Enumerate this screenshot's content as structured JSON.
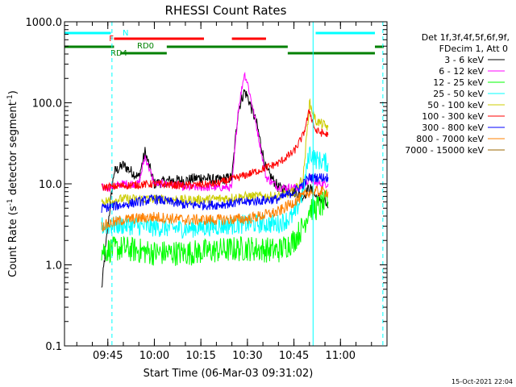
{
  "chart_data": {
    "type": "line",
    "title": "RHESSI Count Rates",
    "xlabel": "Start Time (06-Mar-03 09:31:02)",
    "ylabel": "Count Rate (s⁻¹ detector segment⁻¹)",
    "ylabel_parts": [
      "Count Rate (s",
      "-1",
      " detector segment",
      "-1",
      ")"
    ],
    "y_scale": "log",
    "ylim": [
      0.1,
      1000
    ],
    "xlim": [
      "09:31:02",
      "11:15:00"
    ],
    "x_ticks": [
      "09:45",
      "10:00",
      "10:15",
      "10:30",
      "10:45",
      "11:00"
    ],
    "y_ticks": [
      "0.1",
      "1.0",
      "10.0",
      "100.0",
      "1000.0"
    ],
    "legend_header": [
      "Det 1f,3f,4f,5f,6f,9f,",
      "FDecim 1, Att 0"
    ],
    "timestamp": "15-Oct-2021 22:04",
    "series": [
      {
        "name": "3 - 6 keV",
        "color": "#000000",
        "x": [
          "09:43",
          "09:45",
          "09:47",
          "09:50",
          "09:55",
          "09:57",
          "10:00",
          "10:05",
          "10:10",
          "10:15",
          "10:20",
          "10:25",
          "10:27",
          "10:29",
          "10:30",
          "10:33",
          "10:36",
          "10:40",
          "10:45",
          "10:48",
          "10:50",
          "10:52",
          "10:55",
          "10:56"
        ],
        "y": [
          0.5,
          3,
          14,
          17,
          12,
          25,
          10,
          11,
          11,
          12,
          11,
          12,
          80,
          140,
          120,
          55,
          15,
          9,
          8,
          7,
          9,
          7,
          6,
          5
        ]
      },
      {
        "name": "6 - 12 keV",
        "color": "#ff00ff",
        "x": [
          "09:43",
          "09:45",
          "09:50",
          "09:55",
          "09:57",
          "10:00",
          "10:05",
          "10:10",
          "10:15",
          "10:20",
          "10:25",
          "10:27",
          "10:29",
          "10:30",
          "10:33",
          "10:36",
          "10:40",
          "10:45",
          "10:48",
          "10:50",
          "10:52",
          "10:55",
          "10:56"
        ],
        "y": [
          9,
          9,
          10,
          10,
          22,
          10,
          10,
          9,
          9,
          9,
          9,
          80,
          230,
          180,
          50,
          12,
          9,
          9,
          9,
          12,
          10,
          10,
          10
        ]
      },
      {
        "name": "12 - 25 keV",
        "color": "#00ff00",
        "x": [
          "09:43",
          "09:50",
          "10:00",
          "10:10",
          "10:20",
          "10:30",
          "10:40",
          "10:45",
          "10:48",
          "10:50",
          "10:52",
          "10:56"
        ],
        "y": [
          1.5,
          1.6,
          1.4,
          1.4,
          1.5,
          1.6,
          1.5,
          2,
          3,
          5,
          5,
          6
        ]
      },
      {
        "name": "25 - 50 keV",
        "color": "#00ffff",
        "x": [
          "09:43",
          "09:50",
          "10:00",
          "10:10",
          "10:20",
          "10:30",
          "10:40",
          "10:45",
          "10:48",
          "10:50",
          "10:52",
          "10:56"
        ],
        "y": [
          3,
          3.1,
          2.9,
          2.8,
          3,
          3.2,
          3.2,
          4,
          8,
          25,
          20,
          18
        ]
      },
      {
        "name": "50 - 100 keV",
        "color": "#cccc00",
        "x": [
          "09:43",
          "09:50",
          "10:00",
          "10:10",
          "10:20",
          "10:30",
          "10:40",
          "10:45",
          "10:48",
          "10:50",
          "10:52",
          "10:56"
        ],
        "y": [
          6,
          6.5,
          6.5,
          6.3,
          6.5,
          7,
          7,
          8,
          12,
          100,
          60,
          50
        ]
      },
      {
        "name": "100 - 300 keV",
        "color": "#ff0000",
        "x": [
          "09:43",
          "09:50",
          "10:00",
          "10:10",
          "10:20",
          "10:30",
          "10:40",
          "10:45",
          "10:48",
          "10:50",
          "10:52",
          "10:56"
        ],
        "y": [
          9,
          9.5,
          10,
          9.5,
          10,
          13,
          18,
          25,
          40,
          80,
          45,
          40
        ]
      },
      {
        "name": "300 - 800 keV",
        "color": "#0000ff",
        "x": [
          "09:43",
          "09:50",
          "10:00",
          "10:10",
          "10:20",
          "10:30",
          "10:40",
          "10:45",
          "10:48",
          "10:50",
          "10:52",
          "10:56"
        ],
        "y": [
          5,
          5.5,
          6.5,
          5.5,
          5.5,
          6,
          6.5,
          8,
          10,
          12,
          12,
          12
        ]
      },
      {
        "name": "800 - 7000 keV",
        "color": "#ff8000",
        "x": [
          "09:43",
          "09:50",
          "10:00",
          "10:10",
          "10:20",
          "10:30",
          "10:40",
          "10:45",
          "10:48",
          "10:50",
          "10:52",
          "10:56"
        ],
        "y": [
          3,
          3.6,
          3.9,
          3.6,
          3.6,
          3.7,
          4.5,
          6,
          7,
          8,
          8,
          8
        ]
      },
      {
        "name": "7000 - 15000 keV",
        "color": "#996600",
        "x": [],
        "y": []
      }
    ],
    "flag_bars": [
      {
        "label": "N",
        "color": "#00ffff",
        "segments": [
          [
            "09:31",
            "09:46"
          ],
          [
            "10:52",
            "11:13"
          ]
        ]
      },
      {
        "label": "F",
        "color": "#ff0000",
        "segments": [
          [
            "09:47",
            "10:16"
          ],
          [
            "10:25",
            "10:36"
          ]
        ]
      },
      {
        "label": "RD0",
        "color": "#008000",
        "segments": [
          [
            "09:31",
            "09:47"
          ],
          [
            "10:04",
            "10:43"
          ],
          [
            "11:14",
            "11:15"
          ]
        ]
      },
      {
        "label": "RD4",
        "color": "#008000",
        "segments": [
          [
            "09:49",
            "10:04"
          ],
          [
            "10:43",
            "11:13"
          ]
        ]
      }
    ],
    "vertical_lines": [
      {
        "x": "09:31:02",
        "style": "solid",
        "color": "#00ffff"
      },
      {
        "x": "09:46:20",
        "style": "dashed",
        "color": "#00ffff"
      },
      {
        "x": "10:51:10",
        "style": "solid",
        "color": "#00ffff"
      },
      {
        "x": "11:13:40",
        "style": "dashed",
        "color": "#00ffff"
      }
    ],
    "grid": false,
    "legend_position": "top-right, outside plot"
  }
}
